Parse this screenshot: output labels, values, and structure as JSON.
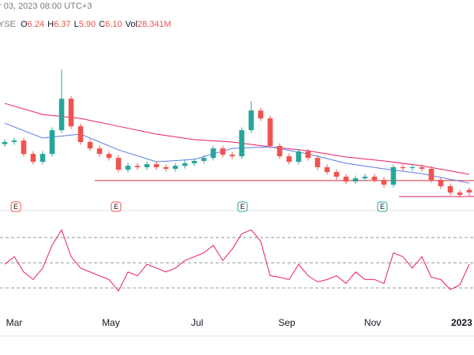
{
  "header": {
    "date": "r 03, 2023 08:00 UTC+3",
    "exchange": "YSE",
    "ohlc": [
      {
        "label": "O",
        "value": "6.24"
      },
      {
        "label": "H",
        "value": "6.37"
      },
      {
        "label": "L",
        "value": "5.90"
      },
      {
        "label": "C",
        "value": "6.10"
      }
    ],
    "volume": {
      "label": "Vol",
      "value": "28.341M"
    }
  },
  "chart_data": {
    "type": "candlestick",
    "x": [
      0,
      1,
      2,
      3,
      4,
      5,
      6,
      7,
      8,
      9,
      10,
      11,
      12,
      13,
      14,
      15,
      16,
      17,
      18,
      19,
      20,
      21,
      22,
      23,
      24,
      25,
      26,
      27,
      28,
      29,
      30,
      31,
      32,
      33,
      34,
      35,
      36,
      37,
      38,
      39,
      40,
      41,
      42,
      43,
      44,
      45,
      46,
      47,
      48,
      49
    ],
    "open": [
      8.8,
      8.92,
      9.0,
      8.25,
      7.81,
      8.25,
      9.58,
      11.34,
      9.8,
      8.92,
      8.56,
      8.25,
      8.03,
      7.37,
      7.59,
      7.51,
      7.68,
      7.51,
      7.42,
      7.59,
      7.73,
      7.86,
      8.03,
      8.56,
      8.21,
      8.12,
      9.58,
      10.68,
      10.24,
      8.7,
      8.12,
      7.81,
      8.39,
      8.03,
      7.51,
      7.24,
      6.98,
      6.71,
      6.89,
      6.98,
      6.8,
      6.53,
      7.51,
      7.46,
      7.51,
      7.42,
      6.8,
      6.45,
      6.09,
      6.24
    ],
    "high": [
      9.07,
      9.15,
      9.15,
      8.4,
      8.4,
      9.73,
      12.97,
      11.49,
      9.95,
      9.07,
      8.71,
      8.4,
      8.18,
      7.74,
      7.74,
      7.83,
      7.83,
      7.66,
      7.74,
      7.88,
      8.01,
      8.18,
      8.71,
      8.71,
      8.36,
      9.73,
      11.21,
      10.83,
      10.39,
      8.85,
      8.27,
      8.54,
      8.54,
      8.18,
      7.66,
      7.39,
      7.13,
      7.04,
      7.13,
      7.13,
      6.95,
      7.66,
      7.66,
      7.66,
      7.66,
      7.57,
      6.95,
      6.6,
      6.24,
      6.37
    ],
    "low": [
      8.65,
      8.77,
      8.1,
      7.66,
      7.66,
      8.1,
      9.43,
      9.65,
      8.77,
      8.41,
      8.1,
      7.88,
      7.22,
      7.22,
      7.36,
      7.36,
      7.36,
      7.27,
      7.27,
      7.44,
      7.58,
      7.71,
      7.88,
      8.06,
      7.97,
      7.97,
      9.43,
      10.09,
      8.55,
      7.97,
      7.66,
      7.66,
      7.88,
      7.36,
      7.09,
      6.83,
      6.56,
      6.56,
      6.74,
      6.65,
      6.38,
      6.38,
      7.31,
      7.31,
      7.27,
      6.65,
      6.3,
      5.94,
      5.81,
      5.9
    ],
    "close": [
      8.92,
      9.0,
      8.25,
      7.81,
      8.25,
      9.58,
      11.34,
      9.8,
      8.92,
      8.56,
      8.25,
      8.03,
      7.37,
      7.59,
      7.51,
      7.68,
      7.51,
      7.42,
      7.59,
      7.73,
      7.86,
      8.03,
      8.56,
      8.21,
      8.12,
      9.58,
      10.68,
      10.24,
      8.7,
      8.12,
      7.81,
      8.39,
      8.03,
      7.51,
      7.24,
      6.98,
      6.71,
      6.89,
      6.98,
      6.8,
      6.53,
      7.51,
      7.46,
      7.51,
      7.42,
      6.8,
      6.45,
      6.09,
      5.96,
      6.1
    ],
    "up_color": "#26a69a",
    "down_color": "#ef5350",
    "xlim": [
      -0.5,
      49.5
    ],
    "ylim": [
      5.3,
      15.1
    ],
    "xticks": [
      {
        "value": 1,
        "label": "Mar"
      },
      {
        "value": 11.2,
        "label": "May"
      },
      {
        "value": 20.3,
        "label": "Jul"
      },
      {
        "value": 29.75,
        "label": "Sep"
      },
      {
        "value": 38.8,
        "label": "Nov"
      },
      {
        "value": 48.2,
        "label": "2023"
      }
    ],
    "moving_averages": [
      {
        "color": "#e91e63",
        "x": [
          0,
          4,
          8,
          12,
          16,
          20,
          24,
          28,
          32,
          36,
          40,
          44,
          49
        ],
        "values": [
          11.08,
          10.46,
          10.24,
          9.8,
          9.36,
          9.05,
          8.92,
          8.65,
          8.43,
          8.08,
          7.86,
          7.59,
          7.11
        ]
      },
      {
        "color": "#5b7ce6",
        "x": [
          0,
          4,
          8,
          12,
          16,
          20,
          24,
          28,
          32,
          36,
          40,
          44,
          49
        ],
        "values": [
          9.97,
          9.14,
          9.36,
          8.48,
          7.81,
          7.95,
          8.56,
          8.65,
          8.25,
          7.73,
          7.42,
          7.15,
          6.62
        ]
      }
    ],
    "hlines": [
      {
        "value": 6.76,
        "from": 9.5,
        "color": "#d32f2f"
      },
      {
        "value": 5.87,
        "from": 41.6,
        "color": "#e91e63"
      }
    ],
    "events": [
      {
        "x": 1.17,
        "label": "E",
        "color": "#ef5350"
      },
      {
        "x": 11.75,
        "label": "E",
        "color": "#ef5350"
      },
      {
        "x": 25.08,
        "label": "E",
        "color": "#26a69a"
      },
      {
        "x": 39.83,
        "label": "E",
        "color": "#26a69a"
      }
    ],
    "rsi": {
      "color": "#e91e63",
      "ylim": [
        9.4,
        88.2
      ],
      "levels": [
        30,
        50,
        70
      ],
      "values": [
        48.8,
        54.8,
        42.7,
        36.7,
        45.8,
        63.9,
        76.1,
        54.8,
        45.8,
        42.7,
        39.7,
        36.7,
        27.6,
        42.7,
        39.7,
        48.8,
        45.8,
        42.7,
        45.8,
        51.8,
        54.8,
        57.9,
        63.9,
        51.8,
        60.9,
        73.0,
        76.1,
        67.0,
        39.7,
        38.5,
        36.7,
        48.8,
        39.7,
        34.8,
        36.7,
        39.7,
        33.6,
        42.7,
        36.7,
        36.7,
        33.6,
        57.9,
        54.8,
        45.8,
        54.8,
        38.5,
        36.7,
        28.8,
        32.4,
        48.8
      ]
    }
  }
}
